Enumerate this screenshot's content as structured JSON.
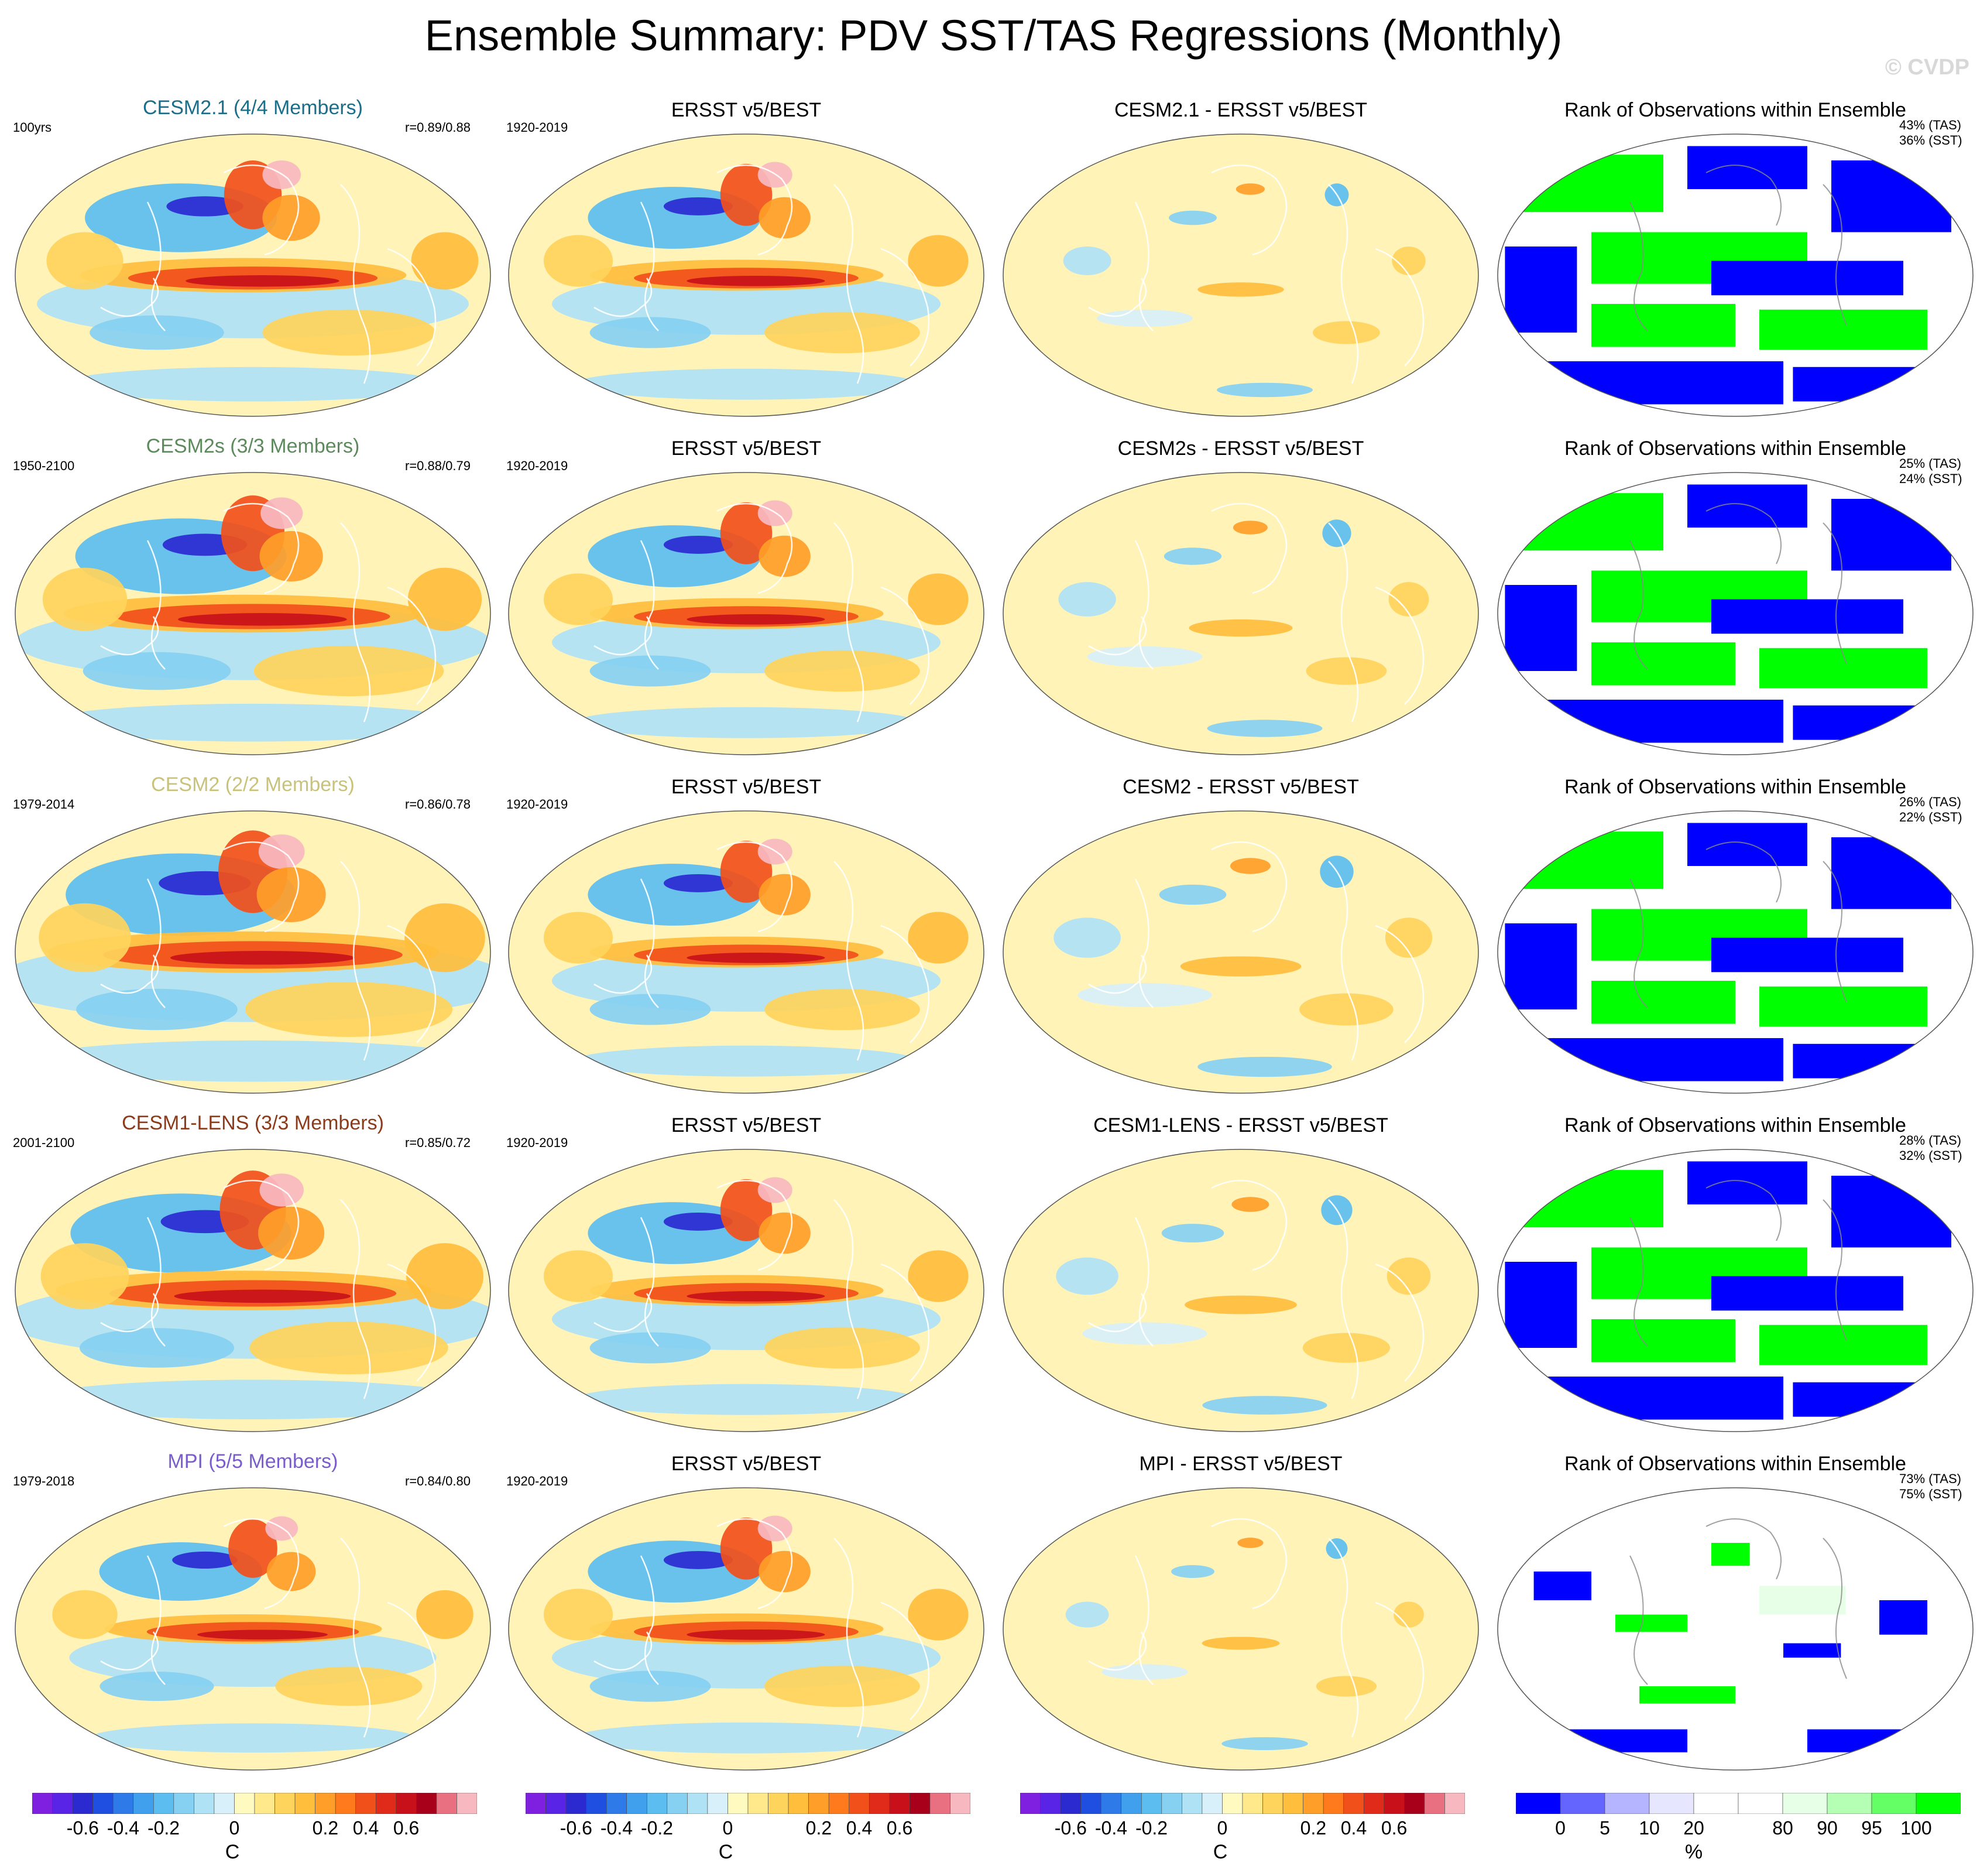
{
  "title": "Ensemble Summary: PDV SST/TAS Regressions (Monthly)",
  "watermark": "© CVDP",
  "columns": [
    "model",
    "obs",
    "diff",
    "rank"
  ],
  "rows": [
    {
      "model_title": "CESM2.1 (4/4 Members)",
      "model_color": "#1a6e8a",
      "period": "100yrs",
      "corr": "r=0.89/0.88",
      "obs_title": "ERSST v5/BEST",
      "obs_period": "1920-2019",
      "diff_title": "CESM2.1 - ERSST v5/BEST",
      "rank_title": "Rank of Observations within Ensemble",
      "rank_tas": "43% (TAS)",
      "rank_sst": "36% (SST)",
      "model_strength": 1.0,
      "diff_strength": 0.5,
      "rank_fill": "mixed"
    },
    {
      "model_title": "CESM2s (3/3 Members)",
      "model_color": "#5c8a5c",
      "period": "1950-2100",
      "corr": "r=0.88/0.79",
      "obs_title": "ERSST v5/BEST",
      "obs_period": "1920-2019",
      "diff_title": "CESM2s - ERSST v5/BEST",
      "rank_title": "Rank of Observations within Ensemble",
      "rank_tas": "25% (TAS)",
      "rank_sst": "24% (SST)",
      "model_strength": 1.1,
      "diff_strength": 0.6,
      "rank_fill": "mixed"
    },
    {
      "model_title": "CESM2 (2/2 Members)",
      "model_color": "#c8c27a",
      "period": "1979-2014",
      "corr": "r=0.86/0.78",
      "obs_title": "ERSST v5/BEST",
      "obs_period": "1920-2019",
      "diff_title": "CESM2 - ERSST v5/BEST",
      "rank_title": "Rank of Observations within Ensemble",
      "rank_tas": "26% (TAS)",
      "rank_sst": "22% (SST)",
      "model_strength": 1.2,
      "diff_strength": 0.7,
      "rank_fill": "mixed"
    },
    {
      "model_title": "CESM1-LENS (3/3 Members)",
      "model_color": "#8b3a1a",
      "period": "2001-2100",
      "corr": "r=0.85/0.72",
      "obs_title": "ERSST v5/BEST",
      "obs_period": "1920-2019",
      "diff_title": "CESM1-LENS - ERSST v5/BEST",
      "rank_title": "Rank of Observations within Ensemble",
      "rank_tas": "28% (TAS)",
      "rank_sst": "32% (SST)",
      "model_strength": 1.15,
      "diff_strength": 0.65,
      "rank_fill": "mixed"
    },
    {
      "model_title": "MPI (5/5 Members)",
      "model_color": "#7a5ccc",
      "period": "1979-2018",
      "corr": "r=0.84/0.80",
      "obs_title": "ERSST v5/BEST",
      "obs_period": "1920-2019",
      "diff_title": "MPI - ERSST v5/BEST",
      "rank_title": "Rank of Observations within Ensemble",
      "rank_tas": "73% (TAS)",
      "rank_sst": "75% (SST)",
      "model_strength": 0.85,
      "diff_strength": 0.45,
      "rank_fill": "sparse"
    }
  ],
  "colorbar_regression": {
    "colors": [
      "#7f1fe0",
      "#5a24e6",
      "#2a2ad0",
      "#1f4fe0",
      "#2e7ae8",
      "#40a0ee",
      "#5cbef0",
      "#86d0f2",
      "#b0e2f6",
      "#d8f0fa",
      "#fffbc0",
      "#ffe98a",
      "#ffd45c",
      "#ffbe3c",
      "#ff9e28",
      "#ff7a1c",
      "#f2501a",
      "#e02a1a",
      "#c8101a",
      "#a8001a",
      "#e87080",
      "#f8b8c0"
    ],
    "ticks": [
      "-0.6",
      "-0.4",
      "-0.2",
      "0",
      "0.2",
      "0.4",
      "0.6"
    ],
    "unit": "C"
  },
  "colorbar_rank": {
    "colors": [
      "#0000ff",
      "#6464ff",
      "#b4b4ff",
      "#e6e6ff",
      "#ffffff",
      "#ffffff",
      "#e6ffe6",
      "#b4ffb4",
      "#64ff64",
      "#00ff00"
    ],
    "ticks": [
      "0",
      "5",
      "10",
      "20",
      "80",
      "90",
      "95",
      "100"
    ],
    "unit": "%"
  }
}
